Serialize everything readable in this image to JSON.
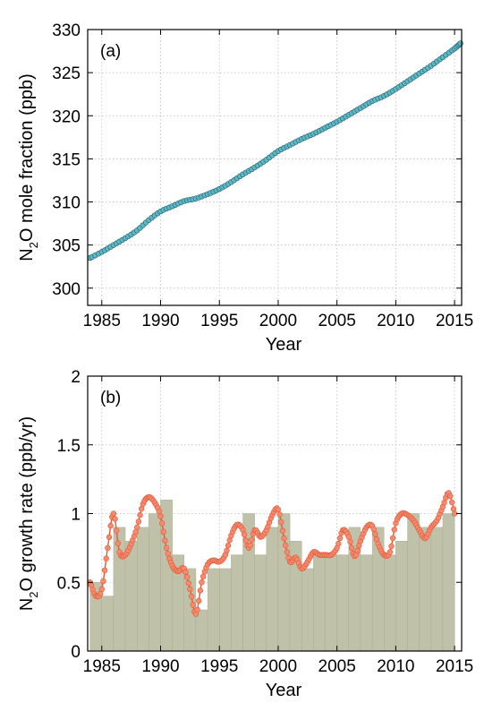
{
  "chart_data": [
    {
      "id": "panel_a",
      "type": "line",
      "panel_label": "(a)",
      "xlabel": "Year",
      "ylabel_main": "N",
      "ylabel_sub": "2",
      "ylabel_rest": "O mole fraction (ppb)",
      "xlim": [
        1983.8,
        2015.6
      ],
      "ylim": [
        298,
        330
      ],
      "xticks": [
        1985,
        1990,
        1995,
        2000,
        2005,
        2010,
        2015
      ],
      "yticks": [
        300,
        305,
        310,
        315,
        320,
        325,
        330
      ],
      "grid": true,
      "colors": {
        "line": "#1f5f66",
        "marker": "#5fb8c8"
      },
      "series": [
        {
          "x": [
            1984.0,
            1985.0,
            1986.0,
            1987.0,
            1988.0,
            1989.0,
            1990.0,
            1991.0,
            1992.0,
            1993.0,
            1994.0,
            1995.0,
            1996.0,
            1997.0,
            1998.0,
            1999.0,
            2000.0,
            2001.0,
            2002.0,
            2003.0,
            2004.0,
            2005.0,
            2006.0,
            2007.0,
            2008.0,
            2009.0,
            2010.0,
            2011.0,
            2012.0,
            2013.0,
            2014.0,
            2015.0,
            2015.5
          ],
          "y": [
            303.5,
            304.2,
            305.0,
            305.8,
            306.7,
            307.9,
            308.9,
            309.5,
            310.1,
            310.4,
            310.9,
            311.5,
            312.3,
            313.2,
            314.0,
            314.9,
            315.9,
            316.6,
            317.3,
            317.9,
            318.6,
            319.3,
            320.1,
            320.9,
            321.7,
            322.3,
            323.1,
            324.0,
            324.9,
            325.8,
            326.8,
            327.8,
            328.4
          ]
        }
      ]
    },
    {
      "id": "panel_b",
      "type": "bar",
      "panel_label": "(b)",
      "xlabel": "Year",
      "ylabel_main": "N",
      "ylabel_sub": "2",
      "ylabel_rest": "O growth rate (ppb/yr)",
      "xlim": [
        1983.8,
        2015.6
      ],
      "ylim": [
        0,
        2
      ],
      "xticks": [
        1985,
        1990,
        1995,
        2000,
        2005,
        2010,
        2015
      ],
      "yticks": [
        0,
        0.5,
        1,
        1.5,
        2
      ],
      "ytick_labels": [
        "0",
        "0.5",
        "1",
        "1.5",
        "2"
      ],
      "grid": true,
      "colors": {
        "bar": "#bfc2a8",
        "bar_edge": "#a6a98e",
        "line": "#e05a3c",
        "marker": "#f58a6c"
      },
      "bars": {
        "x": [
          1984,
          1985,
          1986,
          1987,
          1988,
          1989,
          1990,
          1991,
          1992,
          1993,
          1994,
          1995,
          1996,
          1997,
          1998,
          1999,
          2000,
          2001,
          2002,
          2003,
          2004,
          2005,
          2006,
          2007,
          2008,
          2009,
          2010,
          2011,
          2012,
          2013,
          2014
        ],
        "values": [
          0.5,
          0.4,
          0.9,
          0.8,
          0.9,
          1.0,
          1.1,
          0.7,
          0.6,
          0.3,
          0.6,
          0.6,
          0.7,
          1.0,
          0.7,
          0.9,
          1.0,
          0.8,
          0.6,
          0.7,
          0.7,
          0.7,
          0.9,
          0.7,
          0.9,
          0.7,
          0.8,
          1.0,
          0.9,
          0.9,
          1.0
        ]
      },
      "series": [
        {
          "x": [
            1984.0,
            1984.5,
            1985.0,
            1985.5,
            1986.0,
            1986.5,
            1987.0,
            1987.5,
            1988.0,
            1988.5,
            1989.0,
            1989.5,
            1990.0,
            1990.5,
            1991.0,
            1991.5,
            1992.0,
            1992.5,
            1993.0,
            1993.5,
            1994.0,
            1994.5,
            1995.0,
            1995.5,
            1996.0,
            1996.5,
            1997.0,
            1997.5,
            1998.0,
            1998.5,
            1999.0,
            1999.5,
            2000.0,
            2000.5,
            2001.0,
            2001.5,
            2002.0,
            2002.5,
            2003.0,
            2003.5,
            2004.0,
            2004.5,
            2005.0,
            2005.5,
            2006.0,
            2006.5,
            2007.0,
            2007.5,
            2008.0,
            2008.5,
            2009.0,
            2009.5,
            2010.0,
            2010.5,
            2011.0,
            2011.5,
            2012.0,
            2012.5,
            2013.0,
            2013.5,
            2014.0,
            2014.5,
            2015.0
          ],
          "y": [
            0.5,
            0.4,
            0.45,
            0.75,
            1.0,
            0.72,
            0.7,
            0.78,
            0.9,
            1.07,
            1.12,
            1.08,
            0.98,
            0.75,
            0.62,
            0.58,
            0.6,
            0.45,
            0.27,
            0.5,
            0.63,
            0.66,
            0.65,
            0.7,
            0.84,
            0.92,
            0.88,
            0.75,
            0.88,
            0.83,
            0.88,
            0.99,
            1.03,
            0.82,
            0.65,
            0.68,
            0.6,
            0.65,
            0.72,
            0.7,
            0.7,
            0.7,
            0.75,
            0.88,
            0.83,
            0.69,
            0.8,
            0.9,
            0.91,
            0.78,
            0.7,
            0.72,
            0.93,
            1.0,
            0.99,
            0.95,
            0.88,
            0.82,
            0.9,
            0.95,
            1.05,
            1.15,
            1.0
          ]
        }
      ]
    }
  ]
}
